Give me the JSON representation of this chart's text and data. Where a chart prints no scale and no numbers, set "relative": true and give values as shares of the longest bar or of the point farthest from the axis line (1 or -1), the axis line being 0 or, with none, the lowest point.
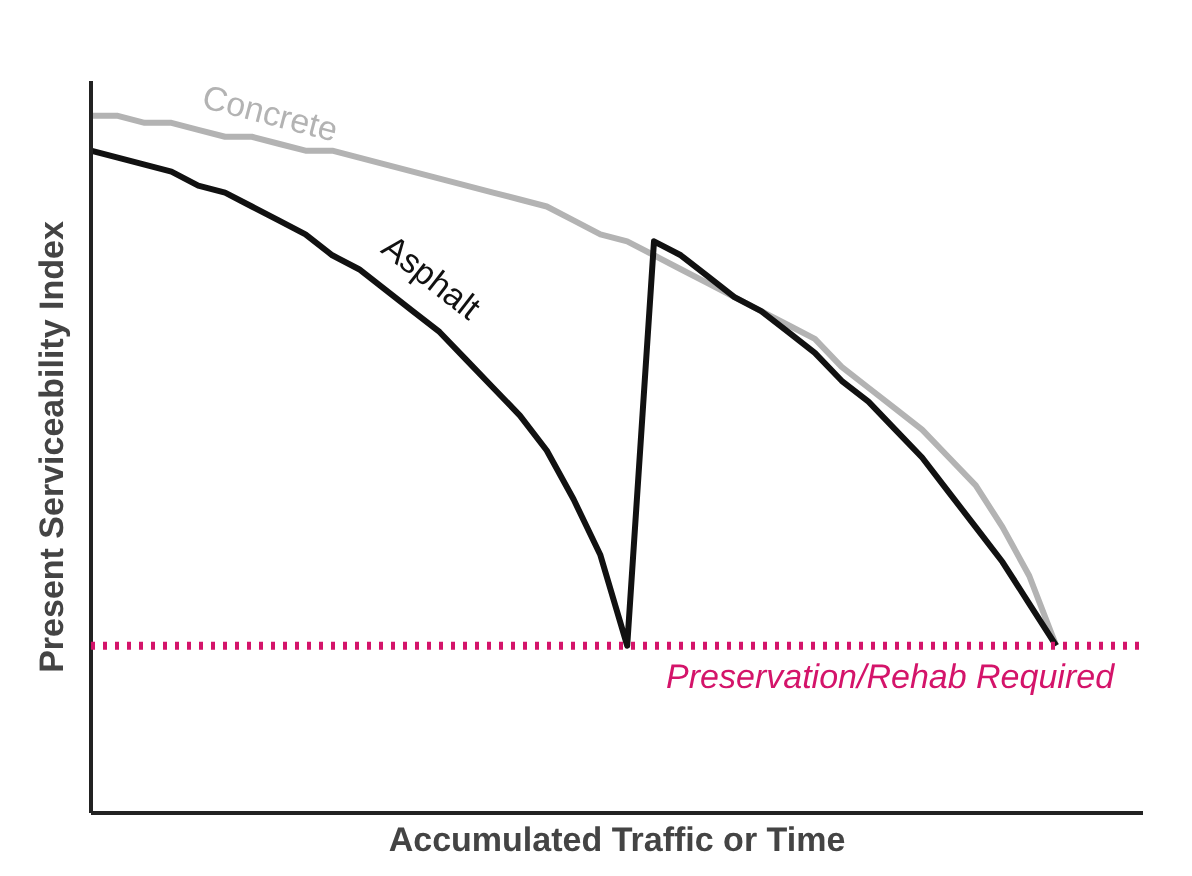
{
  "chart_data": {
    "type": "line",
    "relative": true,
    "xlabel": "Accumulated Traffic or Time",
    "ylabel": "Present Serviceability Index",
    "grid": false,
    "marker": "none",
    "categories": [
      null,
      null,
      null,
      null,
      null,
      null,
      null,
      null,
      null,
      null,
      null,
      null,
      null,
      null,
      null,
      null,
      null,
      null,
      null,
      null,
      null,
      null,
      null,
      null,
      null,
      null,
      null,
      null,
      null,
      null,
      null,
      null,
      null,
      null,
      null,
      null,
      null
    ],
    "series": [
      {
        "name": "Concrete",
        "color": "#b3b3b3",
        "values": [
          1.0,
          1.0,
          0.99,
          0.99,
          0.98,
          0.97,
          0.97,
          0.96,
          0.95,
          0.95,
          0.94,
          0.93,
          0.92,
          0.91,
          0.9,
          0.89,
          0.88,
          0.87,
          0.85,
          0.83,
          0.82,
          0.8,
          0.78,
          0.76,
          0.74,
          0.72,
          0.7,
          0.68,
          0.64,
          0.61,
          0.58,
          0.55,
          0.51,
          0.47,
          0.41,
          0.34,
          0.24
        ]
      },
      {
        "name": "Asphalt",
        "color": "#111111",
        "values": [
          0.95,
          0.94,
          0.93,
          0.92,
          0.9,
          0.89,
          0.87,
          0.85,
          0.83,
          0.8,
          0.78,
          0.75,
          0.72,
          0.69,
          0.65,
          0.61,
          0.57,
          0.52,
          0.45,
          0.37,
          0.24,
          0.82,
          0.8,
          0.77,
          0.74,
          0.72,
          0.69,
          0.66,
          0.62,
          0.59,
          0.55,
          0.51,
          0.46,
          0.41,
          0.36,
          0.3,
          0.24
        ]
      }
    ],
    "ref_lines": [
      {
        "axis": "y",
        "value": 0.24,
        "label": "Preservation/Rehab Required",
        "color": "#d4146a",
        "line_style": "dotted"
      }
    ]
  }
}
